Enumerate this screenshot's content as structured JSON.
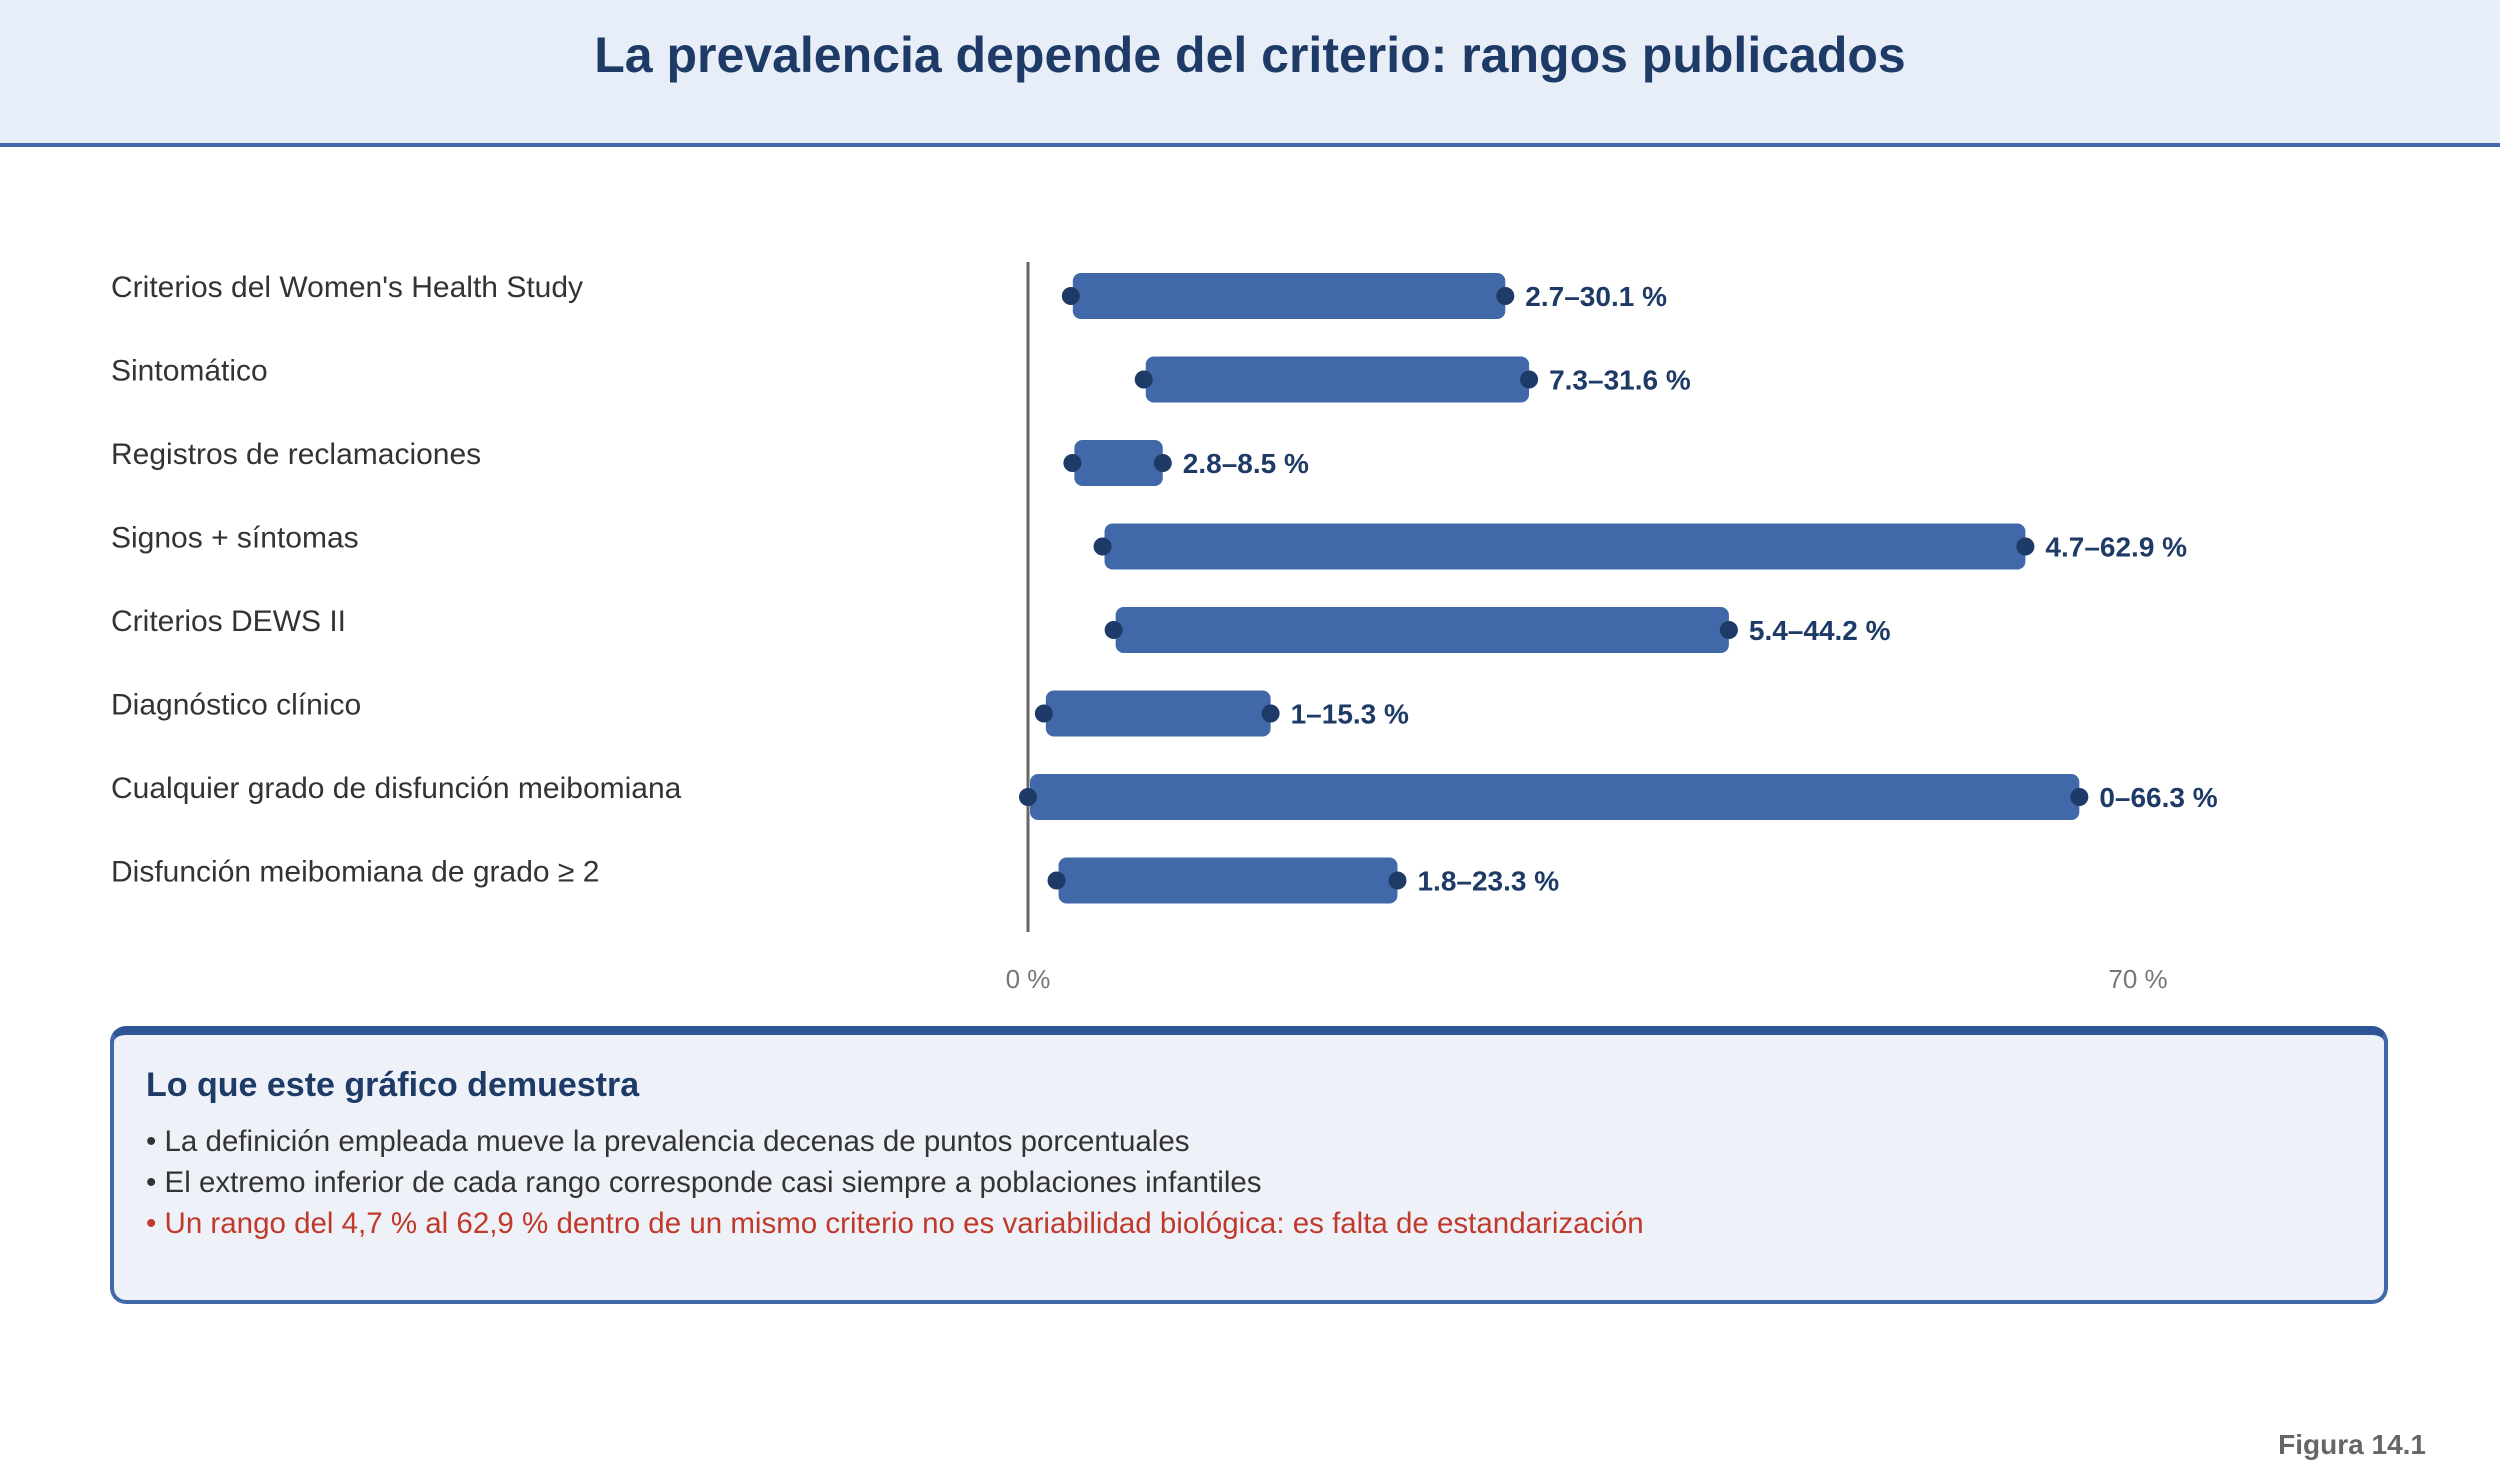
{
  "header": {
    "title": "La prevalencia depende del criterio: rangos publicados"
  },
  "chart_data": {
    "type": "range-bar",
    "title": "La prevalencia depende del criterio: rangos publicados",
    "xlim": [
      0,
      70
    ],
    "x_ticks": [
      "0 %",
      "70 %"
    ],
    "colors": {
      "bar": "#4169aa",
      "endpoint": "#1e3a66",
      "axis": "#666666"
    },
    "series": [
      {
        "label": "Criterios del Women's Health Study",
        "low": 2.7,
        "high": 30.1,
        "value_label": "2.7–30.1 %"
      },
      {
        "label": "Sintomático",
        "low": 7.3,
        "high": 31.6,
        "value_label": "7.3–31.6 %"
      },
      {
        "label": "Registros de reclamaciones",
        "low": 2.8,
        "high": 8.5,
        "value_label": "2.8–8.5 %"
      },
      {
        "label": "Signos + síntomas",
        "low": 4.7,
        "high": 62.9,
        "value_label": "4.7–62.9 %"
      },
      {
        "label": "Criterios DEWS II",
        "low": 5.4,
        "high": 44.2,
        "value_label": "5.4–44.2 %"
      },
      {
        "label": "Diagnóstico clínico",
        "low": 1,
        "high": 15.3,
        "value_label": "1–15.3 %"
      },
      {
        "label": "Cualquier grado de disfunción meibomiana",
        "low": 0,
        "high": 66.3,
        "value_label": "0–66.3 %"
      },
      {
        "label": "Disfunción meibomiana de grado ≥ 2",
        "low": 1.8,
        "high": 23.3,
        "value_label": "1.8–23.3 %"
      }
    ]
  },
  "note": {
    "heading": "Lo que este gráfico demuestra",
    "bullets": [
      "• La definición empleada mueve la prevalencia decenas de puntos porcentuales",
      "• El extremo inferior de cada rango corresponde casi siempre a poblaciones infantiles",
      "• Un rango del 4,7 % al 62,9 % dentro de un mismo criterio no es variabilidad biológica: es falta de estandarización"
    ]
  },
  "figure_label": "Figura 14.1"
}
